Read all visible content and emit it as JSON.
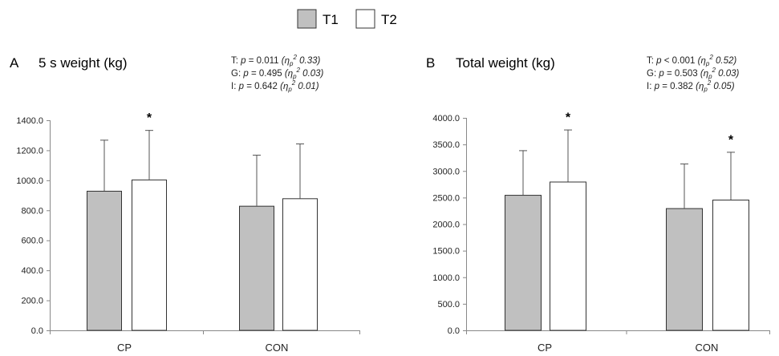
{
  "legend": {
    "items": [
      {
        "label": "T1",
        "color": "#c0c0c0"
      },
      {
        "label": "T2",
        "color": "#ffffff"
      }
    ]
  },
  "chart_data": [
    {
      "type": "bar",
      "panel": "A",
      "title": "5 s weight (kg)",
      "categories": [
        "CP",
        "CON"
      ],
      "series": [
        {
          "name": "T1",
          "values": [
            930,
            830
          ],
          "error": [
            340,
            340
          ]
        },
        {
          "name": "T2",
          "values": [
            1005,
            880
          ],
          "error": [
            330,
            365
          ]
        }
      ],
      "ylim": [
        0,
        1400
      ],
      "yticks": [
        "0.0",
        "200.0",
        "400.0",
        "600.0",
        "800.0",
        "1000.0",
        "1200.0",
        "1400.0"
      ],
      "significance": [
        {
          "category": "CP",
          "series": "T2",
          "mark": "*"
        }
      ],
      "stats": [
        {
          "prefix": "T: ",
          "p_lead": "p",
          "p_text": " = 0.011 ",
          "eta": "η",
          "eta_sub": "p",
          "eta_sup": "2",
          "eta_val": " 0.33)"
        },
        {
          "prefix": "G: ",
          "p_lead": "p",
          "p_text": " = 0.495 ",
          "eta": "η",
          "eta_sub": "p",
          "eta_sup": "2",
          "eta_val": " 0.03)"
        },
        {
          "prefix": "I:  ",
          "p_lead": "p",
          "p_text": " = 0.642 ",
          "eta": "η",
          "eta_sub": "p",
          "eta_sup": "2",
          "eta_val": " 0.01)"
        }
      ]
    },
    {
      "type": "bar",
      "panel": "B",
      "title": "Total weight (kg)",
      "categories": [
        "CP",
        "CON"
      ],
      "series": [
        {
          "name": "T1",
          "values": [
            2550,
            2300
          ],
          "error": [
            840,
            840
          ]
        },
        {
          "name": "T2",
          "values": [
            2800,
            2460
          ],
          "error": [
            980,
            900
          ]
        }
      ],
      "ylim": [
        0,
        4000
      ],
      "yticks": [
        "0.0",
        "500.0",
        "1000.0",
        "1500.0",
        "2000.0",
        "2500.0",
        "3000.0",
        "3500.0",
        "4000.0"
      ],
      "significance": [
        {
          "category": "CP",
          "series": "T2",
          "mark": "*"
        },
        {
          "category": "CON",
          "series": "T2",
          "mark": "*"
        }
      ],
      "stats": [
        {
          "prefix": "T: ",
          "p_lead": "p",
          "p_text": " < 0.001 ",
          "eta": "η",
          "eta_sub": "p",
          "eta_sup": "2",
          "eta_val": " 0.52)"
        },
        {
          "prefix": "G: ",
          "p_lead": "p",
          "p_text": " = 0.503 ",
          "eta": "η",
          "eta_sub": "p",
          "eta_sup": "2",
          "eta_val": " 0.03)"
        },
        {
          "prefix": "I:  ",
          "p_lead": "p",
          "p_text": " = 0.382 ",
          "eta": "η",
          "eta_sub": "p",
          "eta_sup": "2",
          "eta_val": " 0.05)"
        }
      ]
    }
  ]
}
